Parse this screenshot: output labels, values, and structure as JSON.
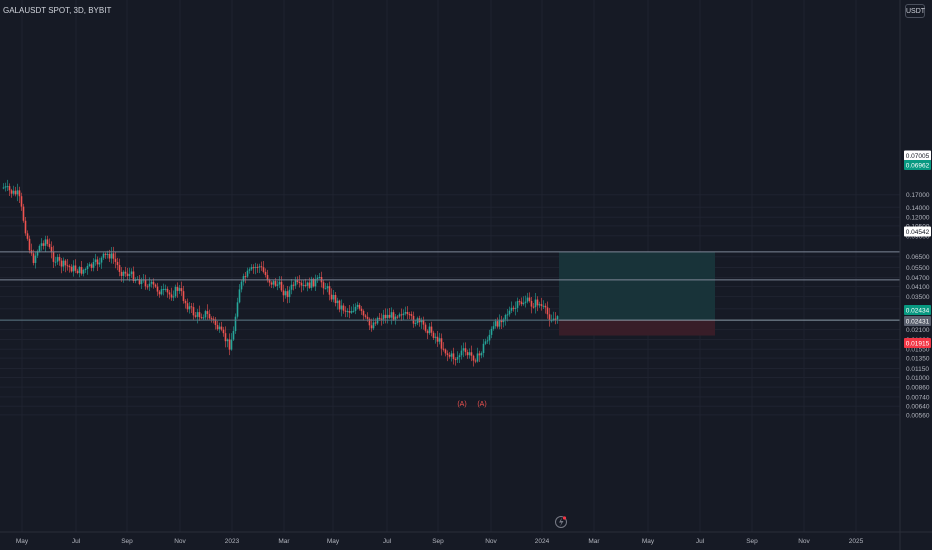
{
  "header": {
    "symbol_line": "GALAUSDT SPOT, 3D, BYBIT"
  },
  "currency_button": {
    "label": "USDT"
  },
  "colors": {
    "background": "#161a25",
    "grid": "#1f2330",
    "candle_up": "#26a69a",
    "candle_down": "#ef5350",
    "profit_zone": "#18353a",
    "loss_zone": "#3a1e28",
    "axis_text": "#b2b5be",
    "label_entry": "#089981",
    "label_stop": "#f23645"
  },
  "price_axis": {
    "ticks": [
      "0.17000",
      "0.14000",
      "0.12000",
      "0.10500",
      "0.09000",
      "0.06500",
      "0.05500",
      "0.04700",
      "0.04100",
      "0.03500",
      "0.02900",
      "0.02100",
      "0.01800",
      "0.01550",
      "0.01350",
      "0.01150",
      "0.01000",
      "0.00860",
      "0.00740",
      "0.00640",
      "0.00560"
    ]
  },
  "time_axis": {
    "labels": [
      "May",
      "Jul",
      "Sep",
      "Nov",
      "2023",
      "Mar",
      "May",
      "Jul",
      "Sep",
      "Nov",
      "2024",
      "Mar",
      "May",
      "Jul",
      "Sep",
      "Nov",
      "2025"
    ]
  },
  "horizontal_lines": [
    {
      "price": "0.07005",
      "style": "neutral"
    },
    {
      "price": "0.04542",
      "style": "neutral"
    },
    {
      "price": "0.02434",
      "style": "entry"
    }
  ],
  "price_labels": [
    {
      "text": "0.07005",
      "style": "white"
    },
    {
      "text": "0.06962",
      "style": "green"
    },
    {
      "text": "0.04542",
      "style": "white"
    },
    {
      "text": "0.02434",
      "style": "green"
    },
    {
      "text": "0.02431",
      "style": "gray"
    },
    {
      "text": "0.01915",
      "style": "red"
    }
  ],
  "position_tool": {
    "entry": "0.02434",
    "target": "0.07005",
    "stop": "0.01915"
  },
  "annotations": [
    {
      "text": "(A)"
    },
    {
      "text": "(A)"
    }
  ],
  "goto_icon": "lightning-icon"
}
